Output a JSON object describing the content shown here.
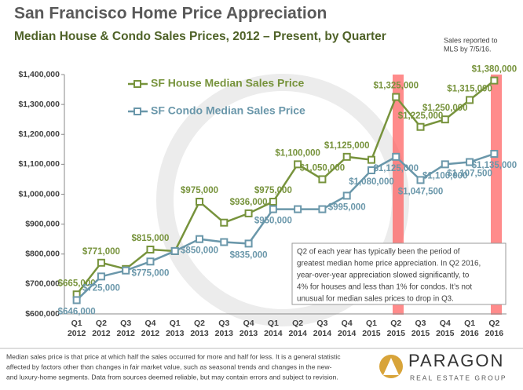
{
  "chart_data": {
    "type": "line",
    "title": "San Francisco Home Price Appreciation",
    "subtitle": "Median House & Condo Sales Prices, 2012 – Present, by Quarter",
    "note": [
      "Sales reported to",
      "MLS by 7/5/16."
    ],
    "categories": [
      [
        "Q1",
        "2012"
      ],
      [
        "Q2",
        "2012"
      ],
      [
        "Q3",
        "2012"
      ],
      [
        "Q4",
        "2012"
      ],
      [
        "Q1",
        "2013"
      ],
      [
        "Q2",
        "2013"
      ],
      [
        "Q3",
        "2013"
      ],
      [
        "Q4",
        "2013"
      ],
      [
        "Q1",
        "2014"
      ],
      [
        "Q2",
        "2014"
      ],
      [
        "Q3",
        "2014"
      ],
      [
        "Q4",
        "2014"
      ],
      [
        "Q1",
        "2015"
      ],
      [
        "Q2",
        "2015"
      ],
      [
        "Q3",
        "2015"
      ],
      [
        "Q4",
        "2015"
      ],
      [
        "Q1",
        "2016"
      ],
      [
        "Q2",
        "2016"
      ]
    ],
    "series": [
      {
        "name": "SF House Median Sales Price",
        "color": "#77933c",
        "values": [
          665000,
          771000,
          750000,
          815000,
          810000,
          975000,
          905000,
          936000,
          975000,
          1100000,
          1050000,
          1125000,
          1115000,
          1325000,
          1225000,
          1250000,
          1315000,
          1380000
        ],
        "value_labels": [
          "$665,000",
          "$771,000",
          null,
          "$815,000",
          null,
          "$975,000",
          null,
          "$936,000",
          "$975,000",
          "$1,100,000",
          "$1,050,000",
          "$1,125,000",
          null,
          "$1,325,000",
          "$1,225,000",
          "$1,250,000",
          "$1,315,000",
          "$1,380,000"
        ]
      },
      {
        "name": "SF Condo Median Sales Price",
        "color": "#6a97aa",
        "values": [
          646000,
          725000,
          745000,
          775000,
          810000,
          850000,
          840000,
          835000,
          950000,
          950000,
          950000,
          995000,
          1080000,
          1125000,
          1047500,
          1100000,
          1107500,
          1135000
        ],
        "value_labels": [
          "$646,000",
          "$725,000",
          null,
          "$775,000",
          null,
          "$850,000",
          null,
          "$835,000",
          "$950,000",
          null,
          null,
          "$995,000",
          "$1,080,000",
          "$1,125,000",
          "$1,047,500",
          "$1,100,000",
          "$1,107,500",
          "$1,135,000"
        ]
      }
    ],
    "ylim": [
      600000,
      1400000
    ],
    "yticks": [
      {
        "value": 600000,
        "label": "$600,000"
      },
      {
        "value": 700000,
        "label": "$700,000"
      },
      {
        "value": 800000,
        "label": "$800,000"
      },
      {
        "value": 900000,
        "label": "$900,000"
      },
      {
        "value": 1000000,
        "label": "$1,000,000"
      },
      {
        "value": 1100000,
        "label": "$1,100,000"
      },
      {
        "value": 1200000,
        "label": "$1,200,000"
      },
      {
        "value": 1300000,
        "label": "$1,300,000"
      },
      {
        "value": 1400000,
        "label": "$1,400,000"
      }
    ],
    "annotation": [
      "Q2 of each year has typically been the period of",
      "greatest median home price appreciation. In Q2 2016,",
      "year-over-year appreciation slowed significantly, to",
      "4% for houses and less than 1% for condos. It’s not",
      "unusual for median sales prices to drop in Q3."
    ],
    "footer": [
      "Median sales price is that price at which half the sales occurred for more and half for less. It is a general statistic",
      "affected by factors other than changes in fair market value, such as seasonal trends and changes in the new-",
      "and luxury-home segments.  Data from sources  deemed reliable, but may contain errors and subject to revision."
    ],
    "logo": {
      "name": "PARAGON",
      "tagline": "REAL ESTATE GROUP"
    }
  }
}
